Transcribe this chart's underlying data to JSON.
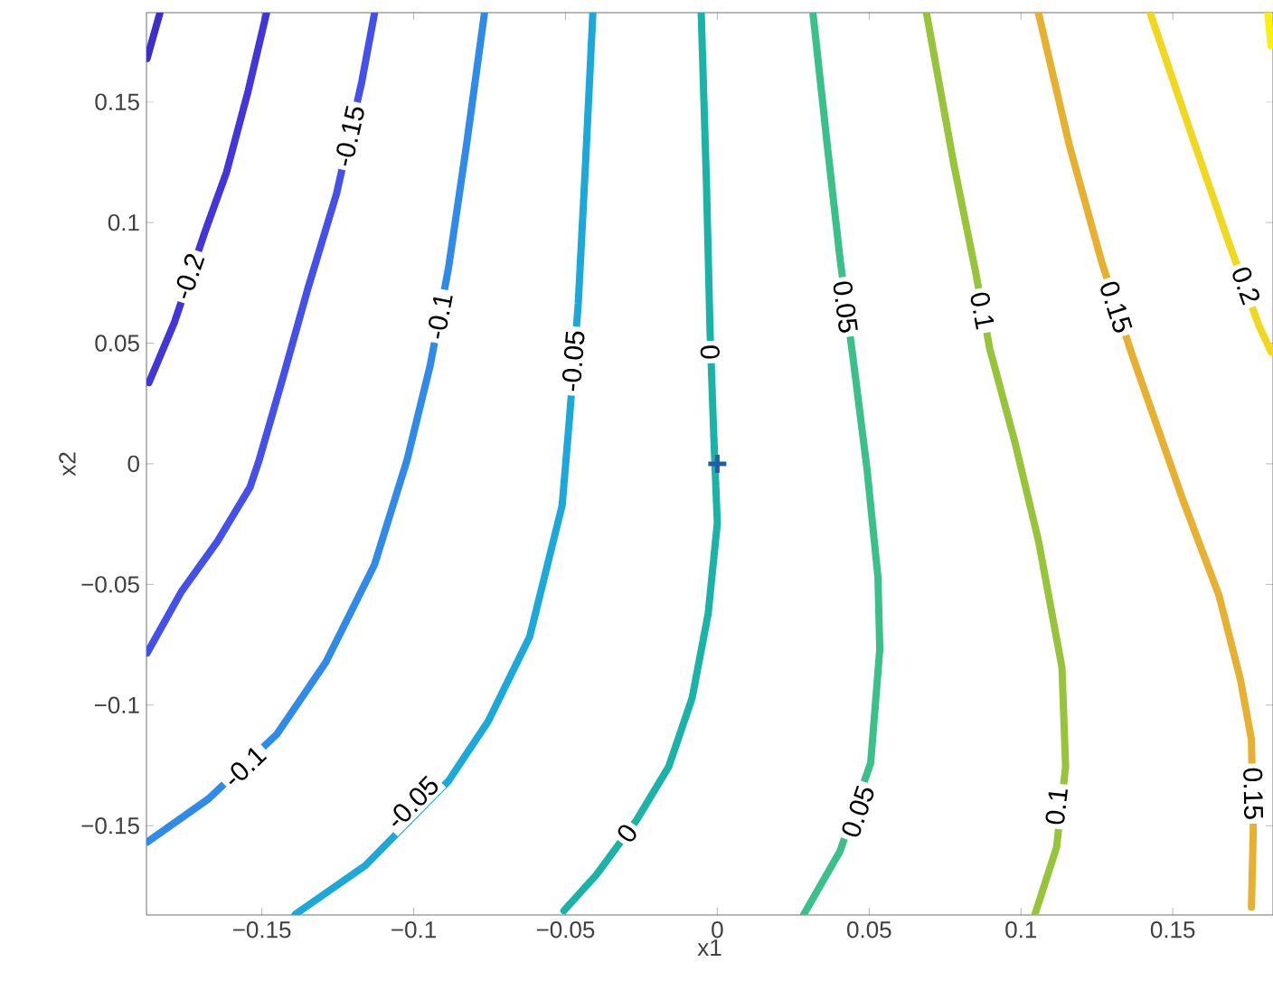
{
  "chart_data": {
    "type": "line",
    "xlabel": "x1",
    "ylabel": "x2",
    "xlim": [
      -0.188,
      0.183
    ],
    "ylim": [
      -0.187,
      0.187
    ],
    "xticks": [
      {
        "value": -0.15,
        "label": "−0.15"
      },
      {
        "value": -0.1,
        "label": "−0.1"
      },
      {
        "value": -0.05,
        "label": "−0.05"
      },
      {
        "value": 0,
        "label": "0"
      },
      {
        "value": 0.05,
        "label": "0.05"
      },
      {
        "value": 0.1,
        "label": "0.1"
      },
      {
        "value": 0.15,
        "label": "0.15"
      }
    ],
    "yticks": [
      {
        "value": -0.15,
        "label": "−0.15"
      },
      {
        "value": -0.1,
        "label": "−0.1"
      },
      {
        "value": -0.05,
        "label": "−0.05"
      },
      {
        "value": 0,
        "label": "0"
      },
      {
        "value": 0.05,
        "label": "0.05"
      },
      {
        "value": 0.1,
        "label": "0.1"
      },
      {
        "value": 0.15,
        "label": "0.15"
      }
    ],
    "series": [
      {
        "color": "#3b2fc8",
        "x": [
          -0.1878,
          -0.1836
        ],
        "values": [
          0.168,
          0.1867
        ]
      },
      {
        "color": "#4236d8",
        "x": [
          -0.1872,
          -0.1789,
          -0.1687,
          -0.1616,
          -0.1545,
          -0.1485
        ],
        "values": [
          0.0336,
          0.0583,
          0.0963,
          0.121,
          0.1546,
          0.1867
        ]
      },
      {
        "color": "#4450e8",
        "x": [
          -0.1129,
          -0.1171,
          -0.1254,
          -0.1349,
          -0.1432,
          -0.1509,
          -0.1539,
          -0.1646,
          -0.1765,
          -0.1878
        ],
        "values": [
          0.1867,
          0.1583,
          0.112,
          0.0724,
          0.0351,
          0.0015,
          -0.0097,
          -0.0321,
          -0.053,
          -0.0784
        ]
      },
      {
        "color": "#2f8ae8",
        "x": [
          -0.0767,
          -0.0826,
          -0.0885,
          -0.0945,
          -0.1022,
          -0.1129,
          -0.1289,
          -0.145,
          -0.1676,
          -0.1878
        ],
        "values": [
          0.1867,
          0.1322,
          0.0814,
          0.0411,
          0.0015,
          -0.0418,
          -0.0822,
          -0.112,
          -0.1389,
          -0.1568
        ]
      },
      {
        "color": "#1ca8d8",
        "x": [
          -0.041,
          -0.0434,
          -0.0458,
          -0.0487,
          -0.0511,
          -0.0618,
          -0.0755,
          -0.0885,
          -0.1159,
          -0.139
        ],
        "values": [
          0.1867,
          0.1247,
          0.0665,
          0.0187,
          -0.0172,
          -0.0717,
          -0.1068,
          -0.1314,
          -0.1665,
          -0.1867
        ]
      },
      {
        "color": "#1bb3a8",
        "x": [
          -0.0053,
          -0.0036,
          -0.0024,
          -0.0012,
          0,
          -0.003,
          -0.0083,
          -0.016,
          -0.0267,
          -0.0398,
          -0.0505
        ],
        "values": [
          0.1867,
          0.1173,
          0.0553,
          0.0127,
          -0.0246,
          -0.062,
          -0.0971,
          -0.1255,
          -0.1479,
          -0.1703,
          -0.1852
        ]
      },
      {
        "color": "#3cc08a",
        "x": [
          0.0315,
          0.0362,
          0.0404,
          0.0446,
          0.0493,
          0.0529,
          0.0535,
          0.0505,
          0.0404,
          0.0285
        ],
        "values": [
          0.1867,
          0.1322,
          0.0851,
          0.0448,
          -0.0022,
          -0.047,
          -0.0769,
          -0.124,
          -0.1606,
          -0.1867
        ]
      },
      {
        "color": "#98c43c",
        "x": [
          0.0689,
          0.0778,
          0.085,
          0.0897,
          0.098,
          0.1058,
          0.1135,
          0.1147,
          0.1117,
          0.1046
        ],
        "values": [
          0.1867,
          0.1247,
          0.0799,
          0.0478,
          0.009,
          -0.0321,
          -0.0844,
          -0.1255,
          -0.1591,
          -0.1867
        ]
      },
      {
        "color": "#e8b030",
        "x": [
          0.1058,
          0.1159,
          0.1266,
          0.1367,
          0.1533,
          0.1652,
          0.1723,
          0.1759,
          0.1765,
          0.1759
        ],
        "values": [
          0.1867,
          0.1322,
          0.0836,
          0.0448,
          -0.0149,
          -0.0545,
          -0.0896,
          -0.1143,
          -0.1516,
          -0.1837
        ]
      },
      {
        "color": "#f0d820",
        "x": [
          0.1426,
          0.1563,
          0.1682,
          0.1783,
          0.1824
        ],
        "values": [
          0.1867,
          0.1359,
          0.0926,
          0.0575,
          0.0463
        ]
      },
      {
        "color": "#f8f010",
        "x": [
          0.1813,
          0.1824
        ],
        "values": [
          0.1867,
          0.1733
        ]
      },
      {
        "type": "scatter",
        "marker": "cross",
        "color": "#1f5fa8",
        "x": [
          0
        ],
        "values": [
          0
        ]
      }
    ],
    "annotations": [
      {
        "text": "-0.2",
        "x": -0.1741,
        "y": 0.0777
      },
      {
        "text": "-0.15",
        "x": -0.1212,
        "y": 0.1359
      },
      {
        "text": "-0.1",
        "x": -0.0915,
        "y": 0.0612
      },
      {
        "text": "-0.05",
        "x": -0.0475,
        "y": 0.0426
      },
      {
        "text": "0",
        "x": -0.0024,
        "y": 0.0463
      },
      {
        "text": "0.05",
        "x": 0.0422,
        "y": 0.065
      },
      {
        "text": "0.1",
        "x": 0.0873,
        "y": 0.0635
      },
      {
        "text": "0.15",
        "x": 0.1313,
        "y": 0.065
      },
      {
        "text": "0.2",
        "x": 0.1741,
        "y": 0.0739
      },
      {
        "text": "-0.1",
        "x": -0.1557,
        "y": -0.1255
      },
      {
        "text": "-0.05",
        "x": -0.1004,
        "y": -0.1404
      },
      {
        "text": "0",
        "x": -0.0297,
        "y": -0.1531
      },
      {
        "text": "0.05",
        "x": 0.0463,
        "y": -0.1441
      },
      {
        "text": "0.1",
        "x": 0.1117,
        "y": -0.1419
      },
      {
        "text": "0.15",
        "x": 0.1765,
        "y": -0.1367
      }
    ]
  }
}
